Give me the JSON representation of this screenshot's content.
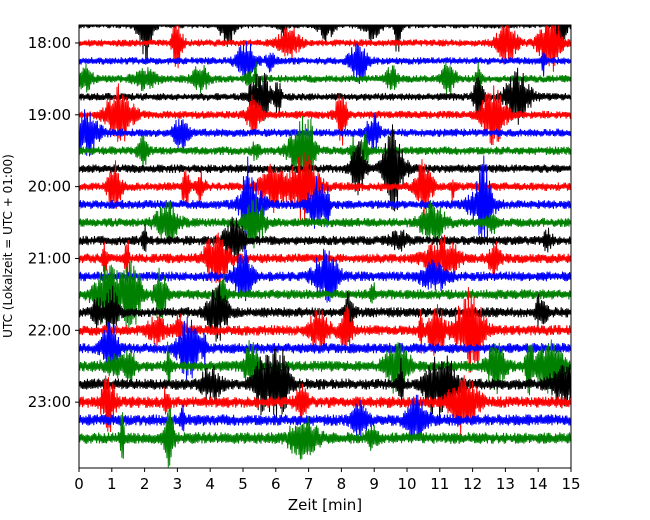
{
  "chart_data": {
    "type": "line",
    "title": "",
    "xlabel": "Zeit  [min]",
    "ylabel": "UTC (Lokalzeit = UTC + 01:00)",
    "xlim": [
      0,
      15
    ],
    "x_ticks": [
      "0",
      "1",
      "2",
      "3",
      "4",
      "5",
      "6",
      "7",
      "8",
      "9",
      "10",
      "11",
      "12",
      "13",
      "14",
      "15"
    ],
    "y_tick_labels": [
      "18:00",
      "19:00",
      "20:00",
      "21:00",
      "22:00",
      "23:00"
    ],
    "ylim": [
      "17:45",
      "23:55"
    ],
    "trace_interval_minutes": 15,
    "trace_count": 24,
    "first_trace_start": "17:45",
    "last_trace_start": "23:30",
    "color_cycle": [
      "#000000",
      "#ff0000",
      "#0000ff",
      "#008000"
    ],
    "grid": false,
    "legend": "none"
  }
}
